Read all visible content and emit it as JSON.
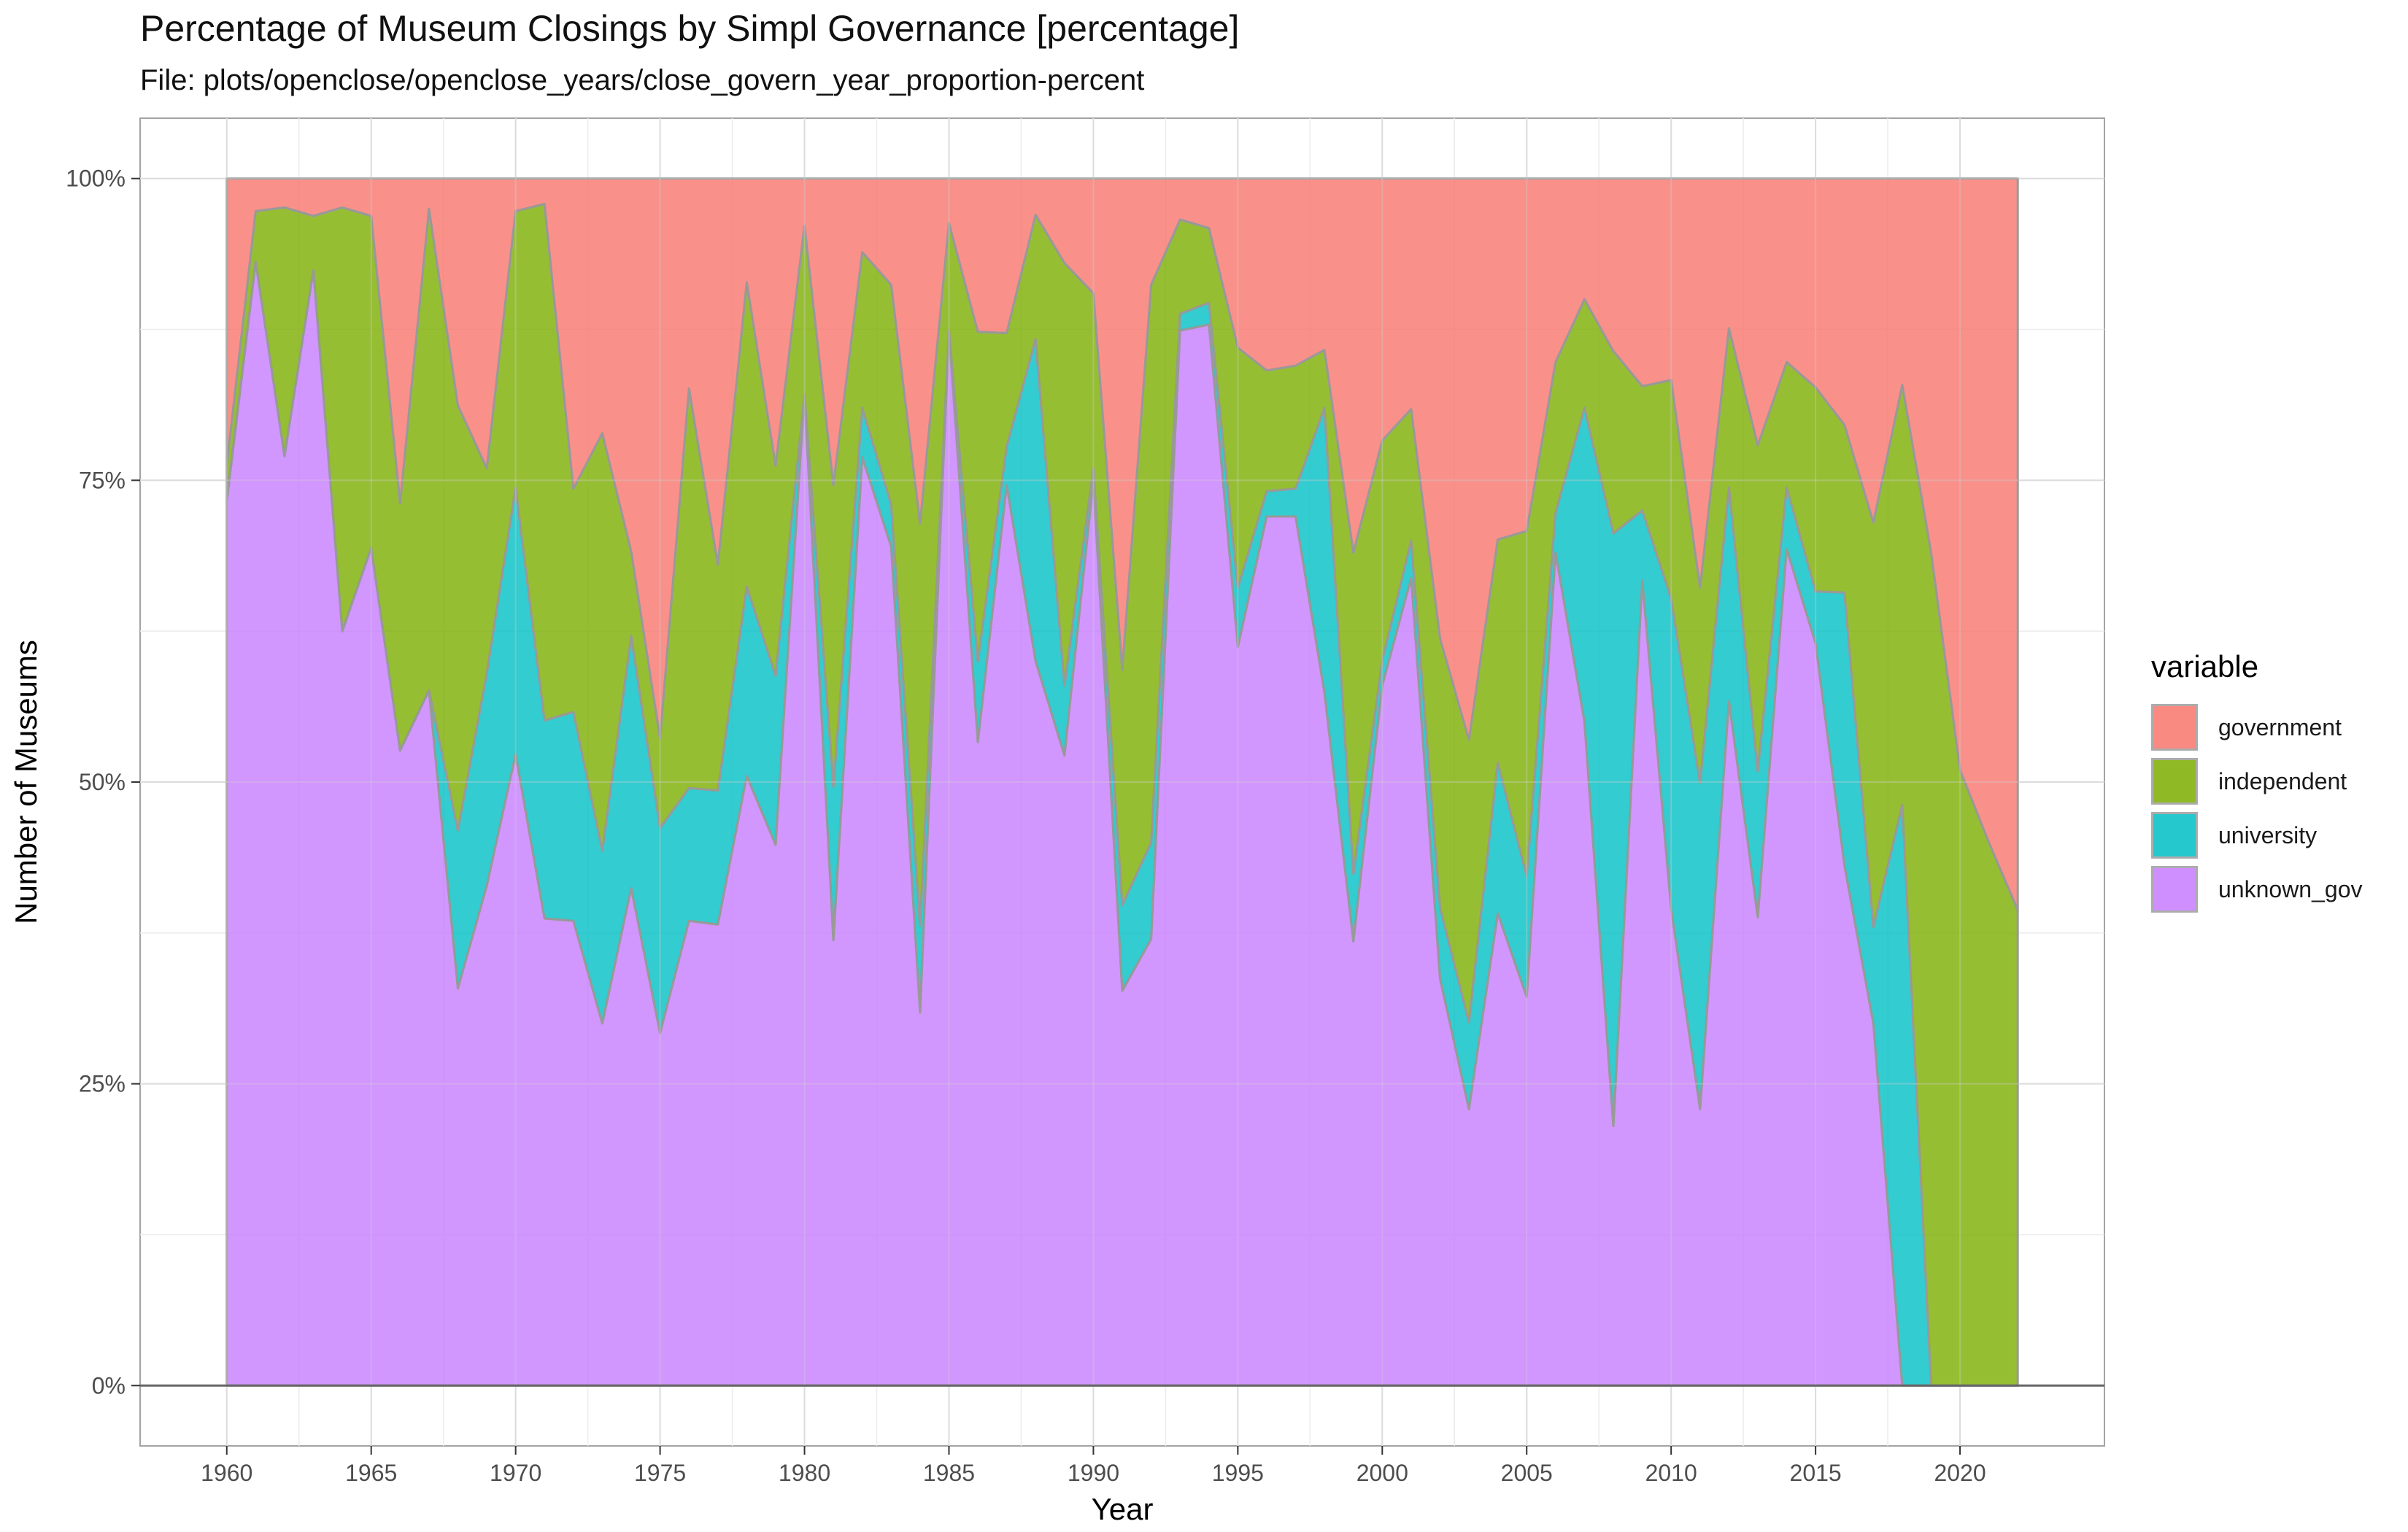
{
  "title": "Percentage of Museum Closings by Simpl Governance [percentage]",
  "subtitle": "File: plots/openclose/openclose_years/close_govern_year_proportion-percent",
  "legend": {
    "title": "variable",
    "items": [
      {
        "label": "government",
        "color": "#F8766D"
      },
      {
        "label": "independent",
        "color": "#7CAE00"
      },
      {
        "label": "university",
        "color": "#00BFC4"
      },
      {
        "label": "unknown_gov",
        "color": "#C77CFF"
      }
    ]
  },
  "chart_data": {
    "type": "area",
    "stacked": true,
    "normalized": true,
    "title": "Percentage of Museum Closings by Simpl Governance [percentage]",
    "subtitle": "File: plots/openclose/openclose_years/close_govern_year_proportion-percent",
    "xlabel": "Year",
    "ylabel": "Number of Museums",
    "xlim": [
      1957,
      2025
    ],
    "ylim": [
      -5,
      105
    ],
    "x_ticks": [
      1960,
      1965,
      1970,
      1975,
      1980,
      1985,
      1990,
      1995,
      2000,
      2005,
      2010,
      2015,
      2020
    ],
    "y_ticks": [
      0,
      25,
      50,
      75,
      100
    ],
    "y_tick_labels": [
      "0%",
      "25%",
      "50%",
      "75%",
      "100%"
    ],
    "grid": true,
    "legend_position": "right",
    "x": [
      1960,
      1961,
      1962,
      1963,
      1964,
      1965,
      1966,
      1967,
      1968,
      1969,
      1970,
      1971,
      1972,
      1973,
      1974,
      1975,
      1976,
      1977,
      1978,
      1979,
      1980,
      1981,
      1982,
      1983,
      1984,
      1985,
      1986,
      1987,
      1988,
      1989,
      1990,
      1991,
      1992,
      1993,
      1994,
      1995,
      1996,
      1997,
      1998,
      1999,
      2000,
      2001,
      2002,
      2003,
      2004,
      2005,
      2006,
      2007,
      2008,
      2009,
      2010,
      2011,
      2012,
      2013,
      2014,
      2015,
      2016,
      2017,
      2018,
      2019,
      2020,
      2021,
      2022
    ],
    "series": [
      {
        "name": "unknown_gov",
        "color": "#C77CFF",
        "values": [
          73.3,
          93.1,
          77.0,
          92.4,
          62.5,
          69.4,
          52.6,
          57.6,
          32.9,
          41.4,
          52.3,
          38.7,
          38.5,
          30.0,
          41.2,
          29.2,
          38.5,
          38.2,
          50.5,
          44.8,
          82.1,
          36.9,
          76.9,
          69.5,
          30.9,
          87.4,
          53.3,
          74.6,
          60.0,
          52.2,
          75.0,
          32.7,
          37.0,
          87.4,
          87.9,
          61.2,
          72.0,
          72.0,
          57.4,
          36.8,
          58.0,
          66.9,
          33.7,
          22.9,
          39.1,
          32.2,
          69.0,
          55.0,
          21.5,
          66.7,
          39.5,
          22.9,
          56.7,
          38.8,
          69.3,
          61.5,
          43.1,
          30.0,
          0.0,
          0.0,
          0.0,
          0.0,
          0.0
        ]
      },
      {
        "name": "university",
        "color": "#00BFC4",
        "values": [
          0.0,
          0.0,
          0.0,
          0.0,
          0.0,
          0.0,
          0.0,
          0.0,
          13.1,
          17.6,
          22.1,
          16.4,
          17.3,
          14.3,
          20.9,
          17.0,
          11.0,
          11.1,
          15.7,
          14.0,
          0.0,
          12.7,
          4.1,
          3.5,
          7.2,
          0.0,
          6.7,
          3.2,
          26.7,
          5.8,
          1.0,
          7.1,
          8.0,
          1.4,
          1.8,
          4.9,
          2.1,
          2.3,
          23.6,
          5.6,
          2.1,
          3.1,
          5.9,
          7.2,
          12.5,
          10.0,
          3.3,
          26.0,
          49.1,
          5.8,
          25.7,
          27.0,
          17.7,
          12.1,
          5.1,
          4.3,
          22.6,
          8.0,
          48.1,
          0.0,
          0.0,
          0.0,
          0.0
        ]
      },
      {
        "name": "independent",
        "color": "#7CAE00",
        "values": [
          3.0,
          4.2,
          20.6,
          4.5,
          35.1,
          27.5,
          20.5,
          39.9,
          35.2,
          17.0,
          22.9,
          42.8,
          18.5,
          34.6,
          7.0,
          7.4,
          33.1,
          18.7,
          25.2,
          17.4,
          14.0,
          25.0,
          12.9,
          18.2,
          33.3,
          8.9,
          27.3,
          9.4,
          10.3,
          35.0,
          14.5,
          19.5,
          46.2,
          7.8,
          6.2,
          19.9,
          10.0,
          10.2,
          4.8,
          26.6,
          18.2,
          10.9,
          22.3,
          23.4,
          18.5,
          28.6,
          12.5,
          9.0,
          15.1,
          10.3,
          18.1,
          16.2,
          13.2,
          27.0,
          10.4,
          16.9,
          13.9,
          33.5,
          34.8,
          69.0,
          51.0,
          45.0,
          39.4
        ]
      },
      {
        "name": "government",
        "color": "#F8766D",
        "values": [
          23.7,
          2.7,
          2.4,
          3.1,
          2.4,
          3.1,
          26.9,
          2.5,
          18.8,
          24.0,
          2.7,
          2.1,
          25.7,
          21.1,
          30.9,
          46.4,
          17.4,
          32.0,
          8.6,
          23.8,
          3.9,
          25.4,
          6.1,
          8.8,
          28.6,
          3.7,
          12.7,
          12.8,
          3.0,
          7.0,
          9.5,
          40.7,
          8.8,
          3.4,
          4.1,
          14.0,
          15.9,
          15.5,
          14.2,
          31.0,
          21.7,
          19.1,
          38.1,
          46.5,
          29.9,
          29.2,
          15.2,
          10.0,
          14.3,
          17.2,
          16.7,
          33.9,
          12.4,
          22.1,
          15.2,
          17.3,
          20.4,
          28.5,
          17.1,
          31.0,
          49.0,
          55.0,
          60.6
        ]
      }
    ]
  }
}
